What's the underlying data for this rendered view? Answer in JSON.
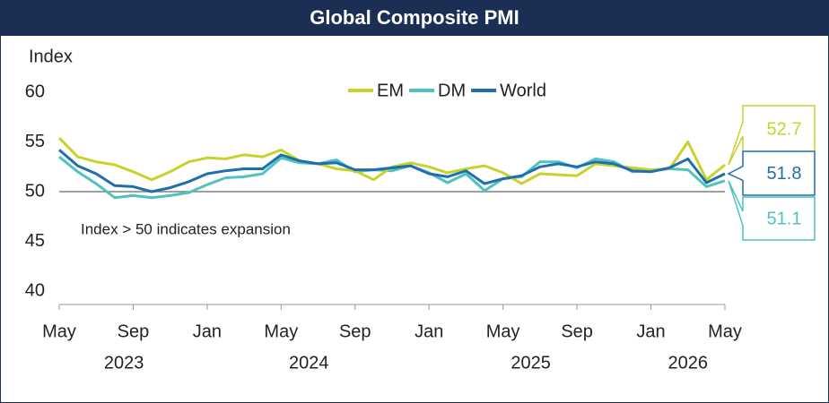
{
  "chart_data": {
    "type": "line",
    "title": "Global Composite PMI",
    "y_axis_label": "Index",
    "annotation": "Index > 50 indicates expansion",
    "x": [
      "2023-05",
      "2023-06",
      "2023-07",
      "2023-08",
      "2023-09",
      "2023-10",
      "2023-11",
      "2023-12",
      "2024-01",
      "2024-02",
      "2024-03",
      "2024-04",
      "2024-05",
      "2024-06",
      "2024-07",
      "2024-08",
      "2024-09",
      "2024-10",
      "2024-11",
      "2024-12",
      "2025-01",
      "2025-02",
      "2025-03",
      "2025-04",
      "2025-05",
      "2025-06",
      "2025-07",
      "2025-08",
      "2025-09",
      "2025-10",
      "2025-11",
      "2025-12",
      "2026-01",
      "2026-02",
      "2026-03",
      "2026-04",
      "2026-05"
    ],
    "xticks": [
      {
        "value": "2023-05",
        "label": "May"
      },
      {
        "value": "2023-09",
        "label": "Sep"
      },
      {
        "value": "2024-01",
        "label": "Jan"
      },
      {
        "value": "2024-05",
        "label": "May"
      },
      {
        "value": "2024-09",
        "label": "Sep"
      },
      {
        "value": "2025-01",
        "label": "Jan"
      },
      {
        "value": "2025-05",
        "label": "May"
      },
      {
        "value": "2025-09",
        "label": "Sep"
      },
      {
        "value": "2026-01",
        "label": "Jan"
      },
      {
        "value": "2026-05",
        "label": "May"
      }
    ],
    "x_years": [
      "2023",
      "2024",
      "2025",
      "2026"
    ],
    "ylim": [
      40,
      60
    ],
    "yticks": [
      40,
      45,
      50,
      55,
      60
    ],
    "reference_line": 50,
    "legend": "top",
    "series": [
      {
        "name": "EM",
        "color": "#c8d22a",
        "values": [
          55.4,
          53.5,
          53.0,
          52.7,
          52.0,
          51.2,
          52.0,
          53.0,
          53.4,
          53.3,
          53.7,
          53.5,
          54.2,
          53.1,
          52.8,
          52.3,
          52.1,
          51.2,
          52.5,
          52.9,
          52.5,
          51.9,
          52.3,
          52.6,
          51.9,
          50.8,
          51.8,
          51.7,
          51.6,
          52.8,
          52.6,
          52.4,
          52.2,
          52.3,
          55.0,
          51.2,
          52.7
        ]
      },
      {
        "name": "DM",
        "color": "#4fc3bf",
        "values": [
          53.5,
          52.0,
          50.8,
          49.4,
          49.6,
          49.4,
          49.6,
          49.9,
          50.7,
          51.4,
          51.5,
          51.8,
          53.4,
          52.9,
          52.8,
          53.2,
          52.0,
          52.2,
          52.1,
          52.6,
          51.9,
          50.9,
          51.8,
          50.1,
          51.3,
          51.5,
          53.0,
          53.0,
          52.4,
          53.3,
          53.0,
          52.0,
          52.1,
          52.3,
          52.2,
          50.5,
          51.1
        ]
      },
      {
        "name": "World",
        "color": "#1f6fae",
        "values": [
          54.2,
          52.6,
          51.8,
          50.6,
          50.5,
          50.0,
          50.4,
          51.0,
          51.8,
          52.1,
          52.3,
          52.3,
          53.7,
          53.1,
          52.8,
          52.9,
          52.2,
          52.2,
          52.4,
          52.6,
          51.8,
          51.5,
          52.1,
          50.8,
          51.3,
          51.6,
          52.5,
          52.8,
          52.5,
          53.0,
          52.8,
          52.1,
          52.0,
          52.4,
          53.3,
          50.9,
          51.8
        ]
      }
    ]
  }
}
